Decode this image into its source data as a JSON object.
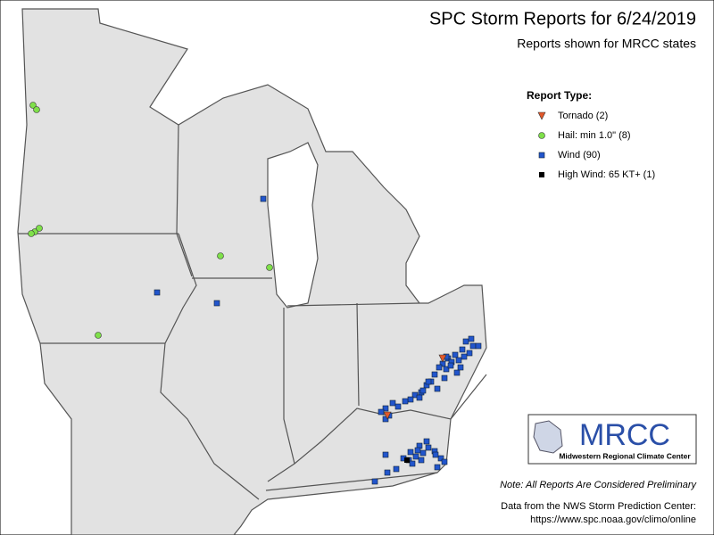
{
  "map": {
    "title": "SPC Storm Reports for 6/24/2019",
    "subtitle": "Reports shown for MRCC states",
    "legend": {
      "title": "Report Type:",
      "items": [
        "Tornado (2)",
        "Hail: min 1.0\" (8)",
        "Wind (90)",
        "High Wind: 65 KT+ (1)"
      ]
    },
    "logo": {
      "name": "MRCC",
      "full_name": "Midwestern Regional Climate Center"
    },
    "note": "Note: All Reports Are Considered Preliminary",
    "source": [
      "Data from the NWS Storm Prediction Center:",
      "https://www.spc.noaa.gov/climo/online"
    ]
  }
}
